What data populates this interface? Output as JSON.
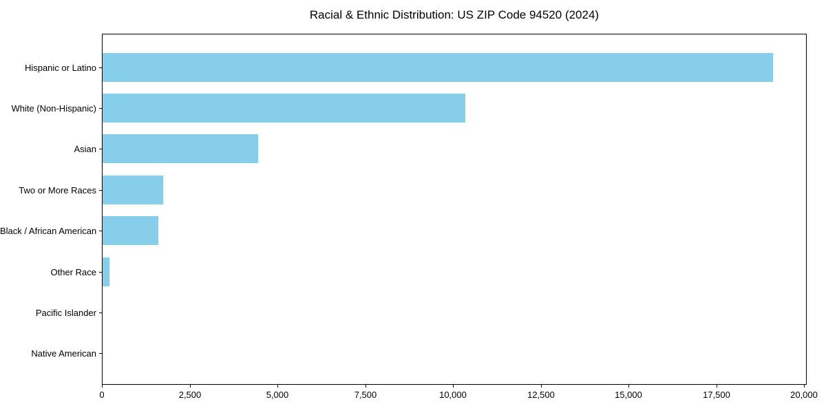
{
  "page": {
    "background_color": "#ffffff",
    "text_color": "#000000"
  },
  "chart_data": {
    "type": "bar",
    "orientation": "horizontal",
    "title": "Racial & Ethnic Distribution: US ZIP Code 94520 (2024)",
    "categories": [
      "Hispanic or Latino",
      "White (Non-Hispanic)",
      "Asian",
      "Two or More Races",
      "Black / African American",
      "Other Race",
      "Pacific Islander",
      "Native American"
    ],
    "values": [
      19100,
      10330,
      4440,
      1730,
      1590,
      200,
      0,
      0
    ],
    "xlabel": "",
    "ylabel": "",
    "xlim": [
      0,
      20100
    ],
    "x_ticks": [
      0,
      2500,
      5000,
      7500,
      10000,
      12500,
      15000,
      17500,
      20000
    ],
    "x_tick_labels": [
      "0",
      "2,500",
      "5,000",
      "7,500",
      "10,000",
      "12,500",
      "15,000",
      "17,500",
      "20,000"
    ],
    "bar_color": "#87CEEB",
    "frame_color": "#000000",
    "grid": false,
    "legend": "none",
    "value_labels": "none"
  }
}
